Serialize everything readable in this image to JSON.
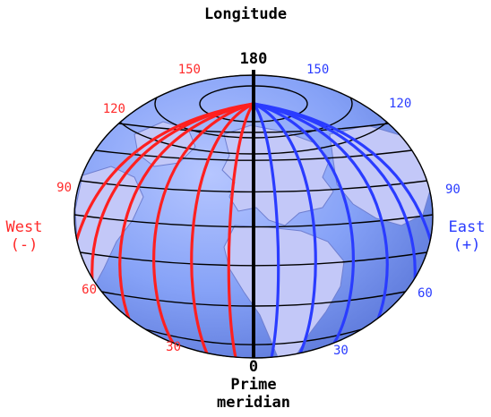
{
  "title": "Longitude",
  "top_value": "180",
  "bottom_value": "0",
  "prime_meridian_label": [
    "Prime",
    "meridian"
  ],
  "west": {
    "label": "West",
    "sign": "(-)",
    "values": [
      "150",
      "120",
      "90",
      "60",
      "30"
    ]
  },
  "east": {
    "label": "East",
    "sign": "(+)",
    "values": [
      "150",
      "120",
      "90",
      "60",
      "30"
    ]
  },
  "colors": {
    "west": "#ff2020",
    "east": "#2a3cff",
    "ocean": "#7e99f5",
    "land": "#b9bff7",
    "grid": "#000000",
    "prime": "#000000"
  }
}
